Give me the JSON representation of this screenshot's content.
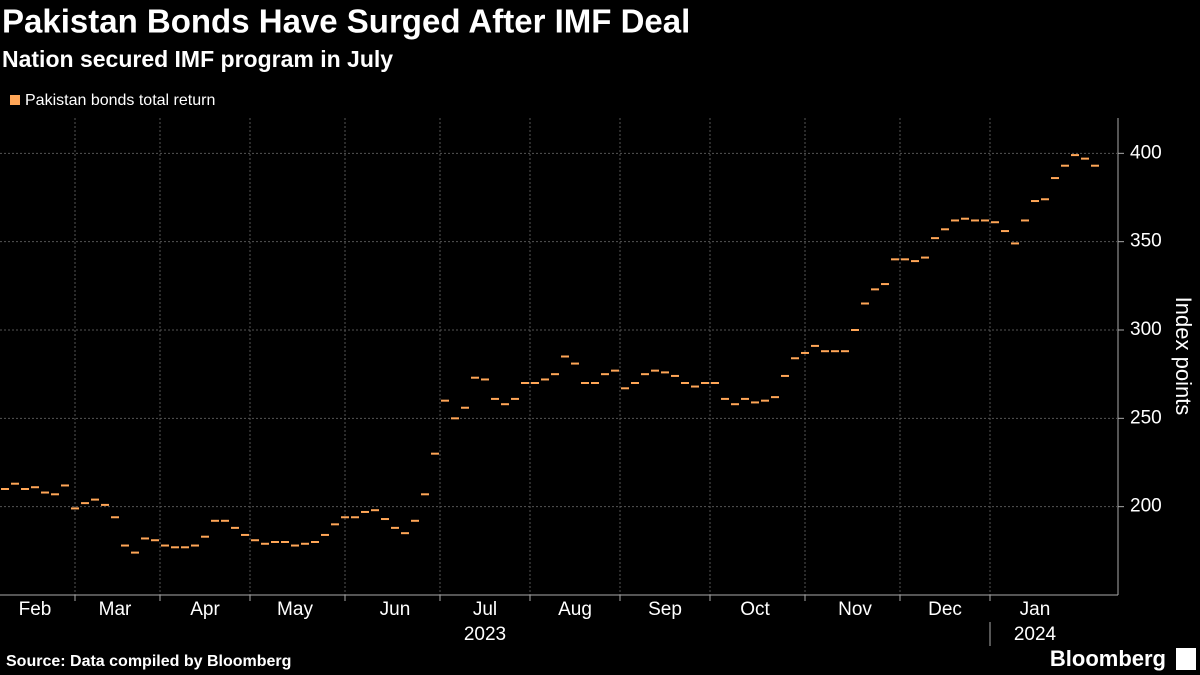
{
  "chart_data": {
    "type": "line",
    "title": "Pakistan Bonds Have Surged After IMF Deal",
    "subtitle": "Nation secured IMF program in July",
    "y_label": "Index points",
    "source": "Source: Data compiled by Bloomberg",
    "brand": "Bloomberg",
    "year_labels": [
      "2023",
      "2024"
    ],
    "categories": [
      null,
      null,
      null,
      "Feb",
      null,
      null,
      null,
      null,
      null,
      null,
      null,
      "Mar",
      null,
      null,
      null,
      null,
      null,
      null,
      null,
      null,
      "Apr",
      null,
      null,
      null,
      null,
      null,
      null,
      null,
      null,
      "May",
      null,
      null,
      null,
      null,
      null,
      null,
      null,
      null,
      null,
      "Jun",
      null,
      null,
      null,
      null,
      null,
      null,
      null,
      null,
      "Jul",
      null,
      null,
      null,
      null,
      null,
      null,
      null,
      null,
      "Aug",
      null,
      null,
      null,
      null,
      null,
      null,
      null,
      null,
      "Sep",
      null,
      null,
      null,
      null,
      null,
      null,
      null,
      null,
      "Oct",
      null,
      null,
      null,
      null,
      null,
      null,
      null,
      null,
      null,
      "Nov",
      null,
      null,
      null,
      null,
      null,
      null,
      null,
      null,
      "Dec",
      null,
      null,
      null,
      null,
      null,
      null,
      null,
      null,
      "Jan",
      null,
      null,
      null,
      null,
      null,
      null
    ],
    "series": [
      {
        "name": "Pakistan bonds total return",
        "color": "#ffa657",
        "values": [
          210,
          213,
          210,
          211,
          208,
          207,
          212,
          199,
          202,
          204,
          201,
          194,
          178,
          174,
          182,
          181,
          178,
          177,
          177,
          178,
          183,
          192,
          192,
          188,
          184,
          181,
          179,
          180,
          180,
          178,
          179,
          180,
          184,
          190,
          194,
          194,
          197,
          198,
          193,
          188,
          185,
          192,
          207,
          230,
          260,
          250,
          256,
          273,
          272,
          261,
          258,
          261,
          270,
          270,
          272,
          275,
          285,
          281,
          270,
          270,
          275,
          277,
          267,
          270,
          275,
          277,
          276,
          274,
          270,
          268,
          270,
          270,
          261,
          258,
          261,
          259,
          260,
          262,
          274,
          284,
          287,
          291,
          288,
          288,
          288,
          300,
          315,
          323,
          326,
          340,
          340,
          339,
          341,
          352,
          357,
          362,
          363,
          362,
          362,
          361,
          356,
          349,
          362,
          373,
          374,
          386,
          393,
          399,
          397,
          393
        ]
      }
    ],
    "ylim": [
      150,
      420
    ],
    "yticks": [
      200,
      250,
      300,
      350,
      400
    ],
    "grid": true
  }
}
